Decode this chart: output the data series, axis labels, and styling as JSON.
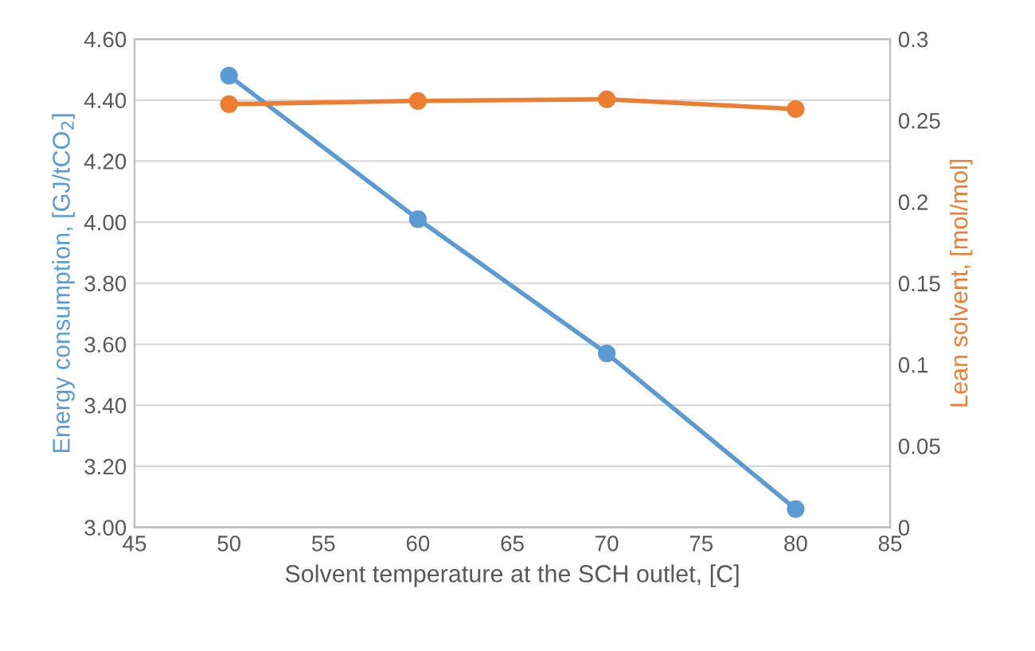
{
  "chart_data": {
    "type": "line",
    "xlabel": "Solvent temperature at the SCH outlet, [C]",
    "ylabel": "Energy consumption, [GJ/tCO$_{2}$]",
    "y2label": "Lean solvent, [mol/mol]",
    "x": [
      50,
      60,
      70,
      80
    ],
    "series": [
      {
        "color": "#5b9bd5",
        "values": [
          4.48,
          4.01,
          3.57,
          3.06
        ]
      },
      {
        "color": "#ed7d31",
        "values": [
          0.26,
          0.262,
          0.263,
          0.257
        ],
        "axis": "y2"
      }
    ],
    "xlim": [
      45,
      85
    ],
    "xticks": [
      45,
      50,
      55,
      60,
      65,
      70,
      75,
      80,
      85
    ],
    "ylim": [
      3.0,
      4.6
    ],
    "yticks": [
      {
        "value": 3.0,
        "label": "3.00"
      },
      {
        "value": 3.2,
        "label": "3.20"
      },
      {
        "value": 3.4,
        "label": "3.40"
      },
      {
        "value": 3.6,
        "label": "3.60"
      },
      {
        "value": 3.8,
        "label": "3.80"
      },
      {
        "value": 4.0,
        "label": "4.00"
      },
      {
        "value": 4.2,
        "label": "4.20"
      },
      {
        "value": 4.4,
        "label": "4.40"
      },
      {
        "value": 4.6,
        "label": "4.60"
      }
    ],
    "y2lim": [
      0,
      0.3
    ],
    "y2ticks": [
      0,
      0.05,
      0.1,
      0.15,
      0.2,
      0.25,
      0.3
    ],
    "grid": "y",
    "marker": "circle",
    "line_style": "solid",
    "legend": false
  }
}
